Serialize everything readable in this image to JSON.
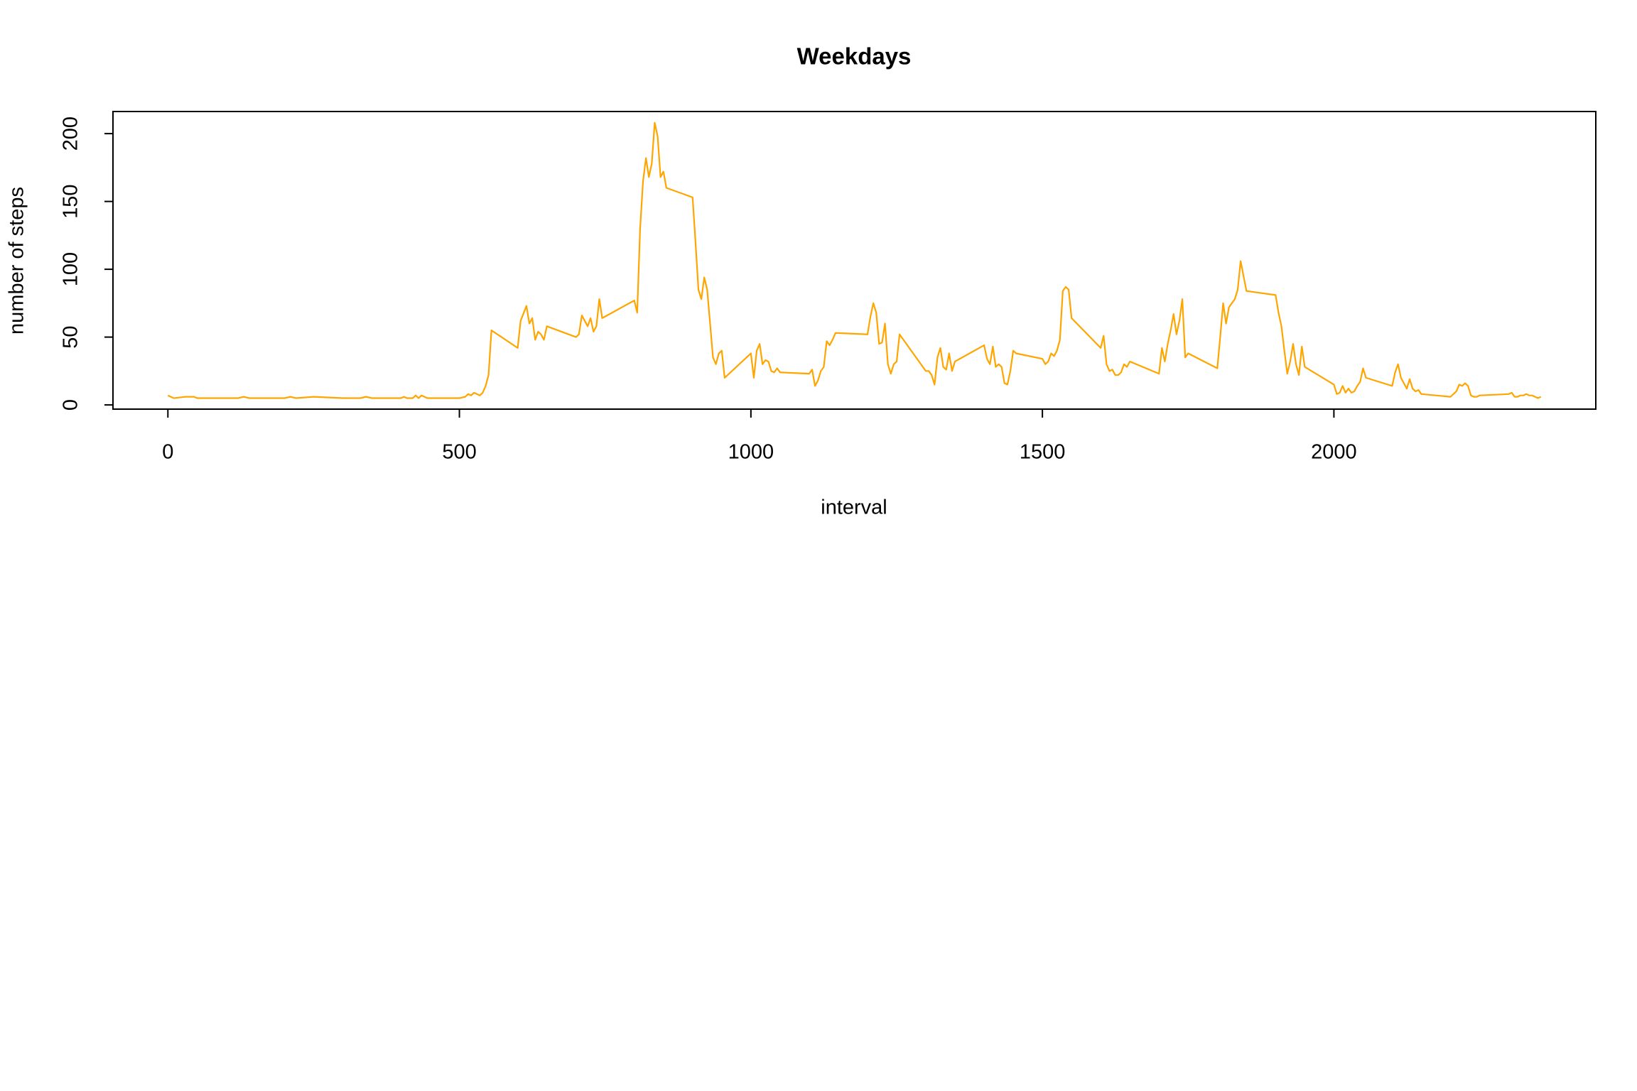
{
  "chart_data": {
    "type": "line",
    "title": "Weekdays",
    "x_label": "interval",
    "y_label": "number of steps",
    "x": [
      0,
      5,
      10,
      30,
      45,
      50,
      120,
      130,
      140,
      200,
      210,
      220,
      250,
      300,
      330,
      340,
      350,
      400,
      405,
      410,
      420,
      425,
      430,
      435,
      440,
      445,
      500,
      510,
      515,
      520,
      525,
      530,
      535,
      540,
      545,
      550,
      555,
      600,
      605,
      615,
      620,
      625,
      630,
      635,
      640,
      645,
      650,
      700,
      705,
      710,
      715,
      720,
      725,
      730,
      735,
      740,
      745,
      800,
      805,
      810,
      815,
      820,
      825,
      830,
      835,
      840,
      845,
      850,
      855,
      900,
      905,
      910,
      915,
      920,
      925,
      930,
      935,
      940,
      945,
      950,
      955,
      1000,
      1005,
      1010,
      1015,
      1020,
      1025,
      1030,
      1035,
      1040,
      1045,
      1050,
      1100,
      1105,
      1110,
      1115,
      1120,
      1125,
      1130,
      1135,
      1140,
      1145,
      1150,
      1200,
      1205,
      1210,
      1215,
      1220,
      1225,
      1230,
      1235,
      1240,
      1245,
      1250,
      1255,
      1300,
      1305,
      1310,
      1315,
      1320,
      1325,
      1330,
      1335,
      1340,
      1345,
      1350,
      1400,
      1405,
      1410,
      1415,
      1420,
      1425,
      1430,
      1435,
      1440,
      1445,
      1450,
      1455,
      1500,
      1505,
      1510,
      1515,
      1520,
      1525,
      1530,
      1535,
      1540,
      1545,
      1550,
      1600,
      1605,
      1610,
      1615,
      1620,
      1625,
      1630,
      1635,
      1640,
      1645,
      1650,
      1700,
      1705,
      1710,
      1715,
      1720,
      1725,
      1730,
      1735,
      1740,
      1745,
      1750,
      1800,
      1805,
      1810,
      1815,
      1820,
      1825,
      1830,
      1835,
      1840,
      1845,
      1850,
      1900,
      1905,
      1910,
      1915,
      1920,
      1925,
      1930,
      1935,
      1940,
      1945,
      1950,
      2000,
      2005,
      2010,
      2015,
      2020,
      2025,
      2030,
      2035,
      2040,
      2045,
      2050,
      2055,
      2100,
      2105,
      2110,
      2115,
      2120,
      2125,
      2130,
      2135,
      2140,
      2145,
      2150,
      2200,
      2205,
      2210,
      2215,
      2220,
      2225,
      2230,
      2235,
      2240,
      2245,
      2250,
      2300,
      2305,
      2310,
      2315,
      2320,
      2325,
      2330,
      2335,
      2340,
      2345,
      2350,
      2355
    ],
    "series": [
      {
        "color": "#FFA500",
        "values": [
          7,
          6,
          5,
          6,
          6,
          5,
          5,
          6,
          5,
          5,
          6,
          5,
          6,
          5,
          5,
          6,
          5,
          5,
          6,
          5,
          5,
          7,
          5,
          7,
          6,
          5,
          5,
          6,
          8,
          7,
          9,
          8,
          7,
          9,
          14,
          22,
          55,
          42,
          62,
          73,
          60,
          64,
          48,
          54,
          52,
          48,
          58,
          50,
          52,
          66,
          62,
          58,
          64,
          54,
          58,
          78,
          64,
          77,
          68,
          130,
          165,
          182,
          168,
          178,
          208,
          198,
          168,
          172,
          160,
          153,
          120,
          85,
          78,
          94,
          85,
          60,
          35,
          30,
          38,
          40,
          20,
          38,
          20,
          40,
          45,
          30,
          33,
          32,
          25,
          24,
          27,
          24,
          23,
          26,
          14,
          18,
          25,
          28,
          47,
          44,
          48,
          53,
          53,
          52,
          65,
          75,
          68,
          45,
          46,
          60,
          30,
          23,
          30,
          32,
          52,
          25,
          25,
          22,
          15,
          35,
          42,
          28,
          26,
          38,
          25,
          32,
          44,
          34,
          30,
          43,
          28,
          30,
          28,
          16,
          15,
          25,
          40,
          38,
          34,
          30,
          32,
          38,
          36,
          40,
          48,
          84,
          87,
          85,
          64,
          42,
          51,
          30,
          25,
          26,
          22,
          22,
          24,
          30,
          28,
          32,
          23,
          42,
          32,
          45,
          55,
          67,
          52,
          62,
          78,
          35,
          38,
          27,
          50,
          75,
          60,
          72,
          75,
          78,
          85,
          106,
          95,
          84,
          81,
          68,
          58,
          40,
          23,
          32,
          45,
          30,
          22,
          43,
          28,
          15,
          8,
          9,
          14,
          9,
          12,
          9,
          10,
          14,
          17,
          27,
          20,
          14,
          24,
          30,
          20,
          16,
          12,
          19,
          12,
          10,
          11,
          8,
          6,
          8,
          10,
          15,
          14,
          16,
          14,
          7,
          6,
          6,
          7,
          8,
          9,
          6,
          6,
          7,
          7,
          8,
          7,
          7,
          6,
          5,
          6
        ]
      }
    ],
    "xlim": [
      -94.2,
      2449.2
    ],
    "ylim": [
      -3.1,
      216.3
    ],
    "xticks": [
      0,
      500,
      1000,
      1500,
      2000
    ],
    "yticks": [
      0,
      50,
      100,
      150,
      200
    ],
    "grid": false
  }
}
